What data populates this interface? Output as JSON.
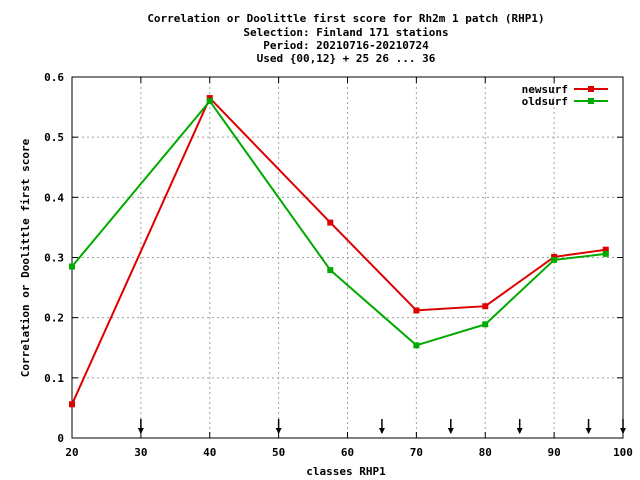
{
  "chart_data": {
    "type": "line",
    "title_lines": [
      "Correlation or Doolittle first score  for Rh2m 1 patch (RHP1)",
      "Selection: Finland    171 stations",
      "Period: 20210716-20210724",
      "Used {00,12} + 25 26 ... 36"
    ],
    "xlabel": "classes RHP1",
    "ylabel": "Correlation or Doolittle first score",
    "xlim": [
      20,
      100
    ],
    "ylim": [
      0,
      0.6
    ],
    "x_ticks": [
      20,
      30,
      40,
      50,
      60,
      70,
      80,
      90,
      100
    ],
    "y_ticks": [
      0,
      0.1,
      0.2,
      0.3,
      0.4,
      0.5,
      0.6
    ],
    "x_tick_labels": [
      "20",
      "30",
      "40",
      "50",
      "60",
      "70",
      "80",
      "90",
      "100"
    ],
    "y_tick_labels": [
      "0",
      "0.1",
      "0.2",
      "0.3",
      "0.4",
      "0.5",
      "0.6"
    ],
    "grid": true,
    "legend_position": "top-right",
    "arrow_markers_x": [
      30,
      50,
      65,
      75,
      85,
      95,
      100
    ],
    "series": [
      {
        "name": "newsurf",
        "color": "#dd0000",
        "x": [
          20,
          40,
          57.5,
          70,
          80,
          90,
          97.5
        ],
        "y": [
          0.056,
          0.565,
          0.358,
          0.212,
          0.219,
          0.301,
          0.313
        ]
      },
      {
        "name": "oldsurf",
        "color": "#00aa00",
        "x": [
          20,
          40,
          57.5,
          70,
          80,
          90,
          97.5
        ],
        "y": [
          0.285,
          0.56,
          0.279,
          0.154,
          0.189,
          0.296,
          0.306
        ]
      }
    ]
  }
}
